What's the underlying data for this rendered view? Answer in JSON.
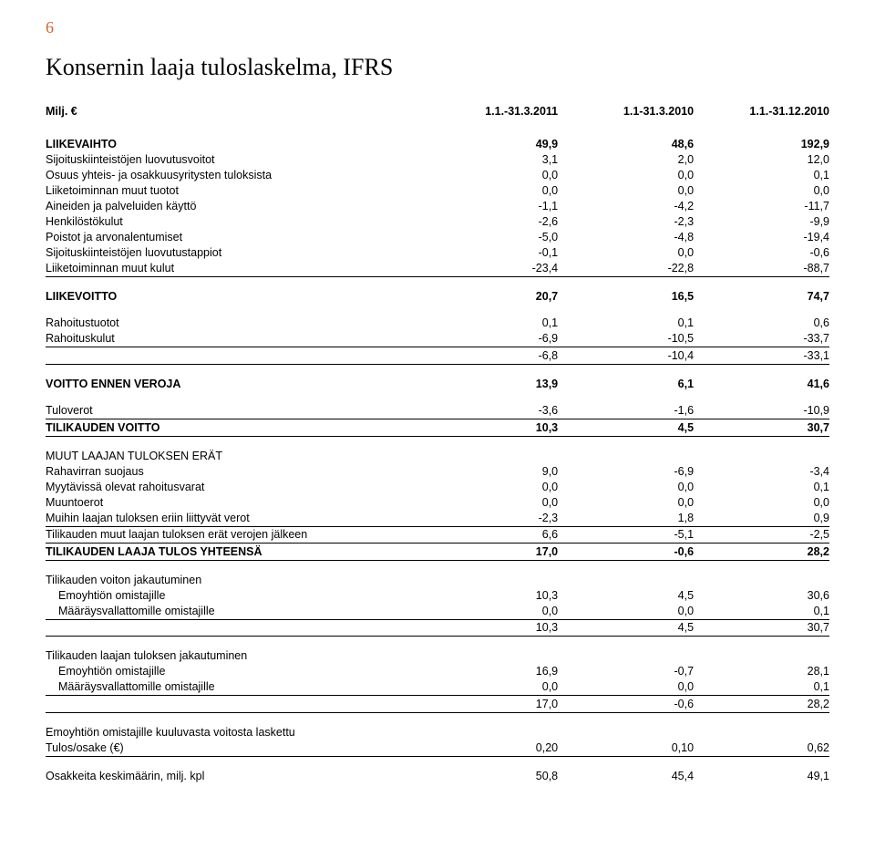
{
  "page_number": "6",
  "title": "Konsernin laaja tuloslaskelma, IFRS",
  "header": {
    "c0": "Milj. €",
    "c1": "1.1.-31.3.2011",
    "c2": "1.1-31.3.2010",
    "c3": "1.1.-31.12.2010"
  },
  "r": {
    "liikevaihto": {
      "l": "LIIKEVAIHTO",
      "v": [
        "49,9",
        "48,6",
        "192,9"
      ]
    },
    "sij_luov": {
      "l": "Sijoituskiinteistöjen luovutusvoitot",
      "v": [
        "3,1",
        "2,0",
        "12,0"
      ]
    },
    "osuus": {
      "l": "Osuus yhteis- ja osakkuusyritysten tuloksista",
      "v": [
        "0,0",
        "0,0",
        "0,1"
      ]
    },
    "muut_tuotot": {
      "l": "Liiketoiminnan muut tuotot",
      "v": [
        "0,0",
        "0,0",
        "0,0"
      ]
    },
    "aineiden": {
      "l": "Aineiden ja palveluiden käyttö",
      "v": [
        "-1,1",
        "-4,2",
        "-11,7"
      ]
    },
    "henkilosto": {
      "l": "Henkilöstökulut",
      "v": [
        "-2,6",
        "-2,3",
        "-9,9"
      ]
    },
    "poistot": {
      "l": "Poistot ja arvonalentumiset",
      "v": [
        "-5,0",
        "-4,8",
        "-19,4"
      ]
    },
    "sij_tappio": {
      "l": "Sijoituskiinteistöjen luovutustappiot",
      "v": [
        "-0,1",
        "0,0",
        "-0,6"
      ]
    },
    "muut_kulut": {
      "l": "Liiketoiminnan muut kulut",
      "v": [
        "-23,4",
        "-22,8",
        "-88,7"
      ]
    },
    "liikevoitto": {
      "l": "LIIKEVOITTO",
      "v": [
        "20,7",
        "16,5",
        "74,7"
      ]
    },
    "rah_tuotot": {
      "l": "Rahoitustuotot",
      "v": [
        "0,1",
        "0,1",
        "0,6"
      ]
    },
    "rah_kulut": {
      "l": "Rahoituskulut",
      "v": [
        "-6,9",
        "-10,5",
        "-33,7"
      ]
    },
    "rah_sum": {
      "l": "",
      "v": [
        "-6,8",
        "-10,4",
        "-33,1"
      ]
    },
    "voitto_ennen": {
      "l": "VOITTO ENNEN VEROJA",
      "v": [
        "13,9",
        "6,1",
        "41,6"
      ]
    },
    "tuloverot": {
      "l": "Tuloverot",
      "v": [
        "-3,6",
        "-1,6",
        "-10,9"
      ]
    },
    "tilikauden": {
      "l": "TILIKAUDEN VOITTO",
      "v": [
        "10,3",
        "4,5",
        "30,7"
      ]
    },
    "muut_laajan": {
      "l": "MUUT LAAJAN TULOKSEN ERÄT",
      "v": [
        "",
        "",
        ""
      ]
    },
    "rahavirta": {
      "l": "Rahavirran suojaus",
      "v": [
        "9,0",
        "-6,9",
        "-3,4"
      ]
    },
    "myytavissa": {
      "l": "Myytävissä olevat rahoitusvarat",
      "v": [
        "0,0",
        "0,0",
        "0,1"
      ]
    },
    "muuntoerot": {
      "l": "Muuntoerot",
      "v": [
        "0,0",
        "0,0",
        "0,0"
      ]
    },
    "muihin": {
      "l": "Muihin laajan tuloksen eriin liittyvät verot",
      "v": [
        "-2,3",
        "1,8",
        "0,9"
      ]
    },
    "tilik_muut": {
      "l": "Tilikauden muut laajan tuloksen erät verojen jälkeen",
      "v": [
        "6,6",
        "-5,1",
        "-2,5"
      ]
    },
    "tilik_laaja": {
      "l": "TILIKAUDEN LAAJA TULOS YHTEENSÄ",
      "v": [
        "17,0",
        "-0,6",
        "28,2"
      ]
    },
    "voiton_jak": {
      "l": "Tilikauden voiton jakautuminen",
      "v": [
        "",
        "",
        ""
      ]
    },
    "emo1": {
      "l": "Emoyhtiön omistajille",
      "v": [
        "10,3",
        "4,5",
        "30,6"
      ]
    },
    "maar1": {
      "l": "Määräysvallattomille omistajille",
      "v": [
        "0,0",
        "0,0",
        "0,1"
      ]
    },
    "sum1": {
      "l": "",
      "v": [
        "10,3",
        "4,5",
        "30,7"
      ]
    },
    "laajan_jak": {
      "l": "Tilikauden laajan tuloksen jakautuminen",
      "v": [
        "",
        "",
        ""
      ]
    },
    "emo2": {
      "l": "Emoyhtiön omistajille",
      "v": [
        "16,9",
        "-0,7",
        "28,1"
      ]
    },
    "maar2": {
      "l": "Määräysvallattomille omistajille",
      "v": [
        "0,0",
        "0,0",
        "0,1"
      ]
    },
    "sum2": {
      "l": "",
      "v": [
        "17,0",
        "-0,6",
        "28,2"
      ]
    },
    "emo_kuul": {
      "l": "Emoyhtiön omistajille kuuluvasta voitosta laskettu",
      "v": [
        "",
        "",
        ""
      ]
    },
    "tulos_osake": {
      "l": "Tulos/osake (€)",
      "v": [
        "0,20",
        "0,10",
        "0,62"
      ]
    },
    "osakkeita": {
      "l": "Osakkeita keskimäärin, milj. kpl",
      "v": [
        "50,8",
        "45,4",
        "49,1"
      ]
    }
  }
}
